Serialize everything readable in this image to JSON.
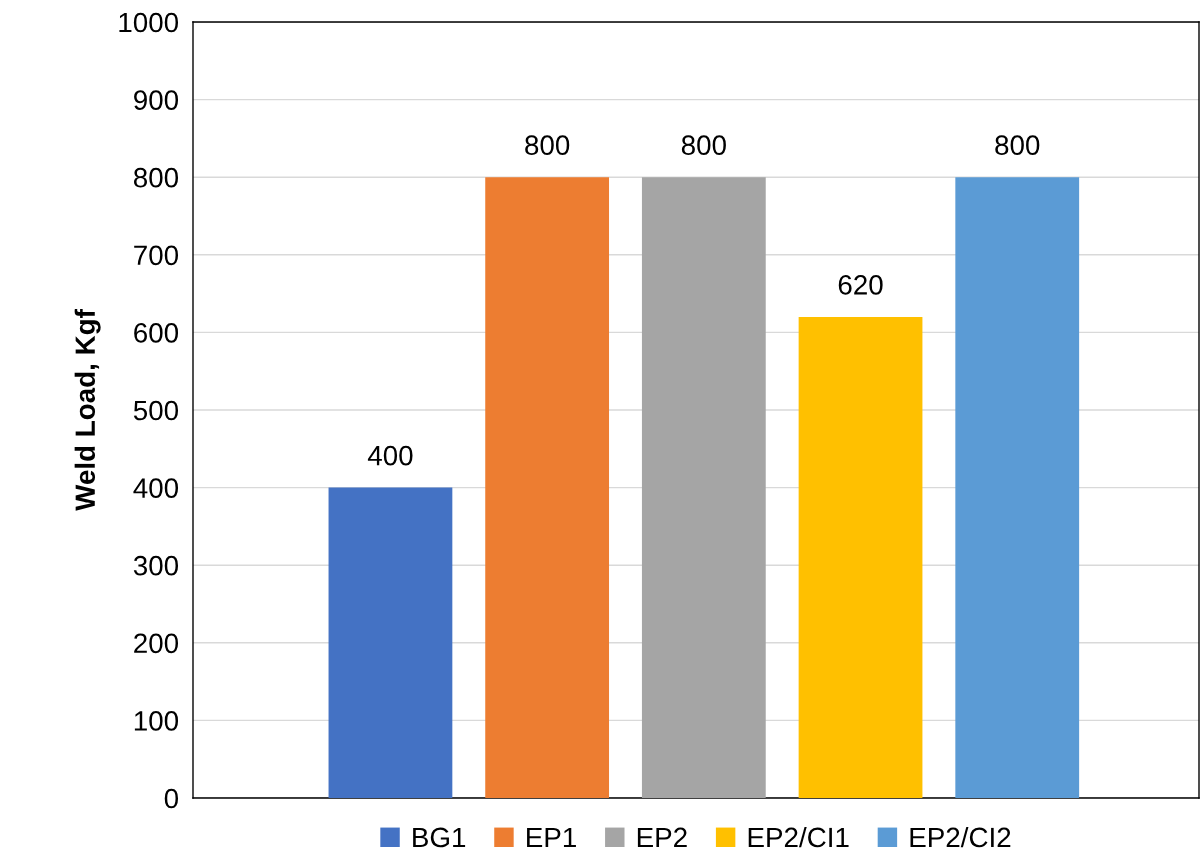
{
  "chart_data": {
    "type": "bar",
    "ylabel": "Weld Load, Kgf",
    "categories": [
      null
    ],
    "series": [
      {
        "name": "BG1",
        "color": "#4472c4",
        "values": [
          400
        ]
      },
      {
        "name": "EP1",
        "color": "#ed7d31",
        "values": [
          800
        ]
      },
      {
        "name": "EP2",
        "color": "#a5a5a5",
        "values": [
          800
        ]
      },
      {
        "name": "EP2/CI1",
        "color": "#ffc000",
        "values": [
          620
        ]
      },
      {
        "name": "EP2/CI2",
        "color": "#5b9bd5",
        "values": [
          800
        ]
      }
    ],
    "ylim": [
      0,
      1000
    ],
    "yticks": [
      0,
      100,
      200,
      300,
      400,
      500,
      600,
      700,
      800,
      900,
      1000
    ],
    "grid": "y",
    "legend": "bottom",
    "data_labels": true
  }
}
